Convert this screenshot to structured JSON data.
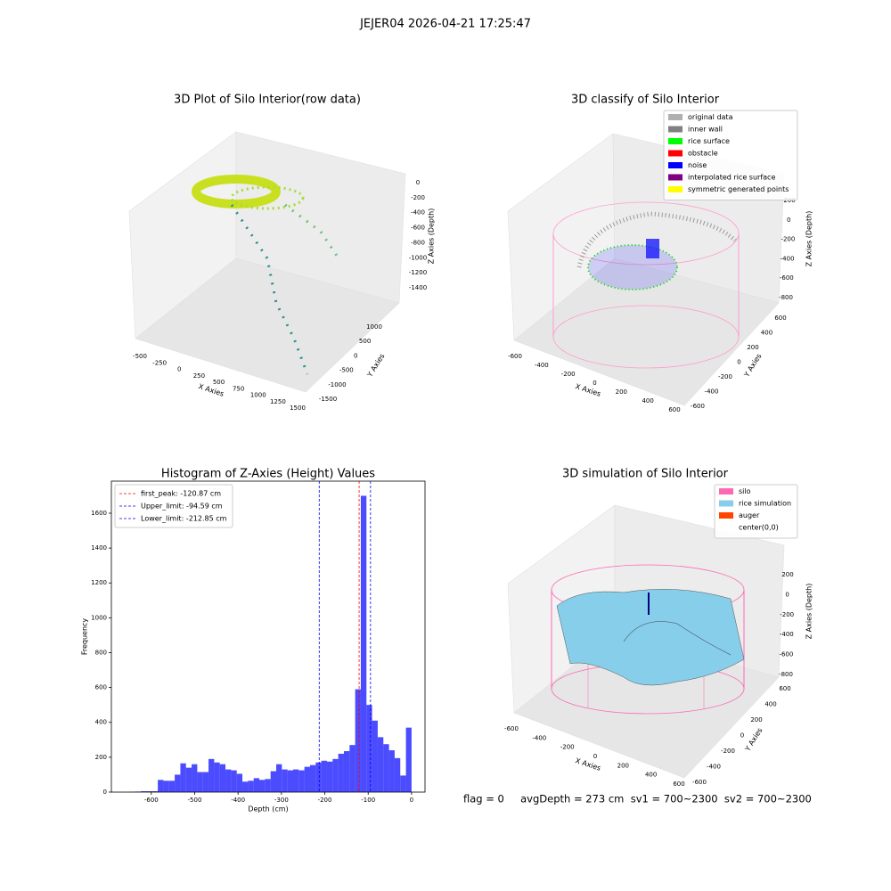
{
  "figure": {
    "title": "JEJER04 2026-04-21 17:25:47",
    "footer": "flag = 0     avgDepth = 273 cm  sv1 = 700~2300  sv2 = 700~2300"
  },
  "chart_data": [
    {
      "type": "scatter3d",
      "title": "3D Plot of Silo Interior(row data)",
      "xlabel": "X Axies",
      "ylabel": "Y Axies",
      "zlabel": "Z Axies (Depth)",
      "xticks": [
        -500,
        -250,
        0,
        250,
        500,
        750,
        1000,
        1250,
        1500
      ],
      "yticks": [
        1000,
        500,
        0,
        -500,
        -1000,
        -1500
      ],
      "zticks": [
        0,
        -200,
        -400,
        -600,
        -800,
        -1000,
        -1200,
        -1400
      ]
    },
    {
      "type": "classify3d",
      "title": "3D classify of Silo Interior",
      "xlabel": "X Axies",
      "ylabel": "Y Axies",
      "zlabel": "Z Axies (Depth)",
      "xticks": [
        -600,
        -400,
        -200,
        0,
        200,
        400,
        600
      ],
      "yticks": [
        600,
        400,
        200,
        0,
        -200,
        -400,
        -600
      ],
      "zticks": [
        200,
        0,
        -200,
        -400,
        -600,
        -800
      ],
      "legend": [
        {
          "name": "original data",
          "color": "#b0b0b0"
        },
        {
          "name": "inner wall",
          "color": "#808080"
        },
        {
          "name": "rice surface",
          "color": "#00ff00"
        },
        {
          "name": "obstacle",
          "color": "#ff0000"
        },
        {
          "name": "noise",
          "color": "#0000ff"
        },
        {
          "name": "interpolated rice surface",
          "color": "#800080"
        },
        {
          "name": "symmetric generated points",
          "color": "#ffff00"
        }
      ]
    },
    {
      "type": "histogram",
      "title": "Histogram of Z-Axies (Height) Values",
      "xlabel": "Depth (cm)",
      "ylabel": "Frequency",
      "color": "#0000ff",
      "alpha": 0.7,
      "bins": [
        -650,
        -637,
        -624,
        -611,
        -598,
        -585,
        -572,
        -559,
        -546,
        -533,
        -520,
        -507,
        -494,
        -481,
        -468,
        -455,
        -442,
        -429,
        -416,
        -403,
        -390,
        -377,
        -364,
        -351,
        -338,
        -325,
        -312,
        -299,
        -286,
        -273,
        -260,
        -247,
        -234,
        -221,
        -208,
        -195,
        -182,
        -169,
        -156,
        -143,
        -130,
        -117,
        -104,
        -91,
        -78,
        -65,
        -52,
        -39,
        -26,
        -13,
        0
      ],
      "counts": [
        2,
        3,
        5,
        5,
        5,
        70,
        65,
        65,
        100,
        165,
        140,
        160,
        115,
        115,
        190,
        170,
        160,
        130,
        125,
        105,
        60,
        65,
        80,
        70,
        75,
        120,
        160,
        130,
        125,
        130,
        125,
        145,
        155,
        170,
        180,
        175,
        190,
        220,
        235,
        270,
        590,
        1700,
        500,
        410,
        315,
        275,
        240,
        195,
        95,
        370
      ],
      "xlim": [
        -692,
        31
      ],
      "ylim": [
        0,
        1784
      ],
      "xticks": [
        -600,
        -500,
        -400,
        -300,
        -200,
        -100,
        0
      ],
      "yticks": [
        0,
        200,
        400,
        600,
        800,
        1000,
        1200,
        1400,
        1600
      ],
      "vlines": [
        {
          "name": "first_peak: -120.87 cm",
          "value": -120.87,
          "color": "#ff0000"
        },
        {
          "name": "Upper_limit: -94.59 cm",
          "value": -94.59,
          "color": "#0000ff"
        },
        {
          "name": "Lower_limit: -212.85 cm",
          "value": -212.85,
          "color": "#0000ff"
        }
      ],
      "legend_loc": "upper left"
    },
    {
      "type": "surface3d",
      "title": "3D simulation of Silo Interior",
      "xlabel": "X Axies",
      "ylabel": "Y Axies",
      "zlabel": "Z Axies (Depth)",
      "xticks": [
        -600,
        -400,
        -200,
        0,
        200,
        400,
        600
      ],
      "yticks": [
        600,
        400,
        200,
        0,
        -200,
        -400,
        -600
      ],
      "zticks": [
        200,
        0,
        -200,
        -400,
        -600,
        -800
      ],
      "legend": [
        {
          "name": "silo",
          "color": "#ff69b4"
        },
        {
          "name": "rice simulation",
          "color": "#87ceeb"
        },
        {
          "name": "auger",
          "color": "#ff4500"
        },
        {
          "name": "center(0,0)",
          "color": "#ffffff"
        }
      ]
    }
  ]
}
